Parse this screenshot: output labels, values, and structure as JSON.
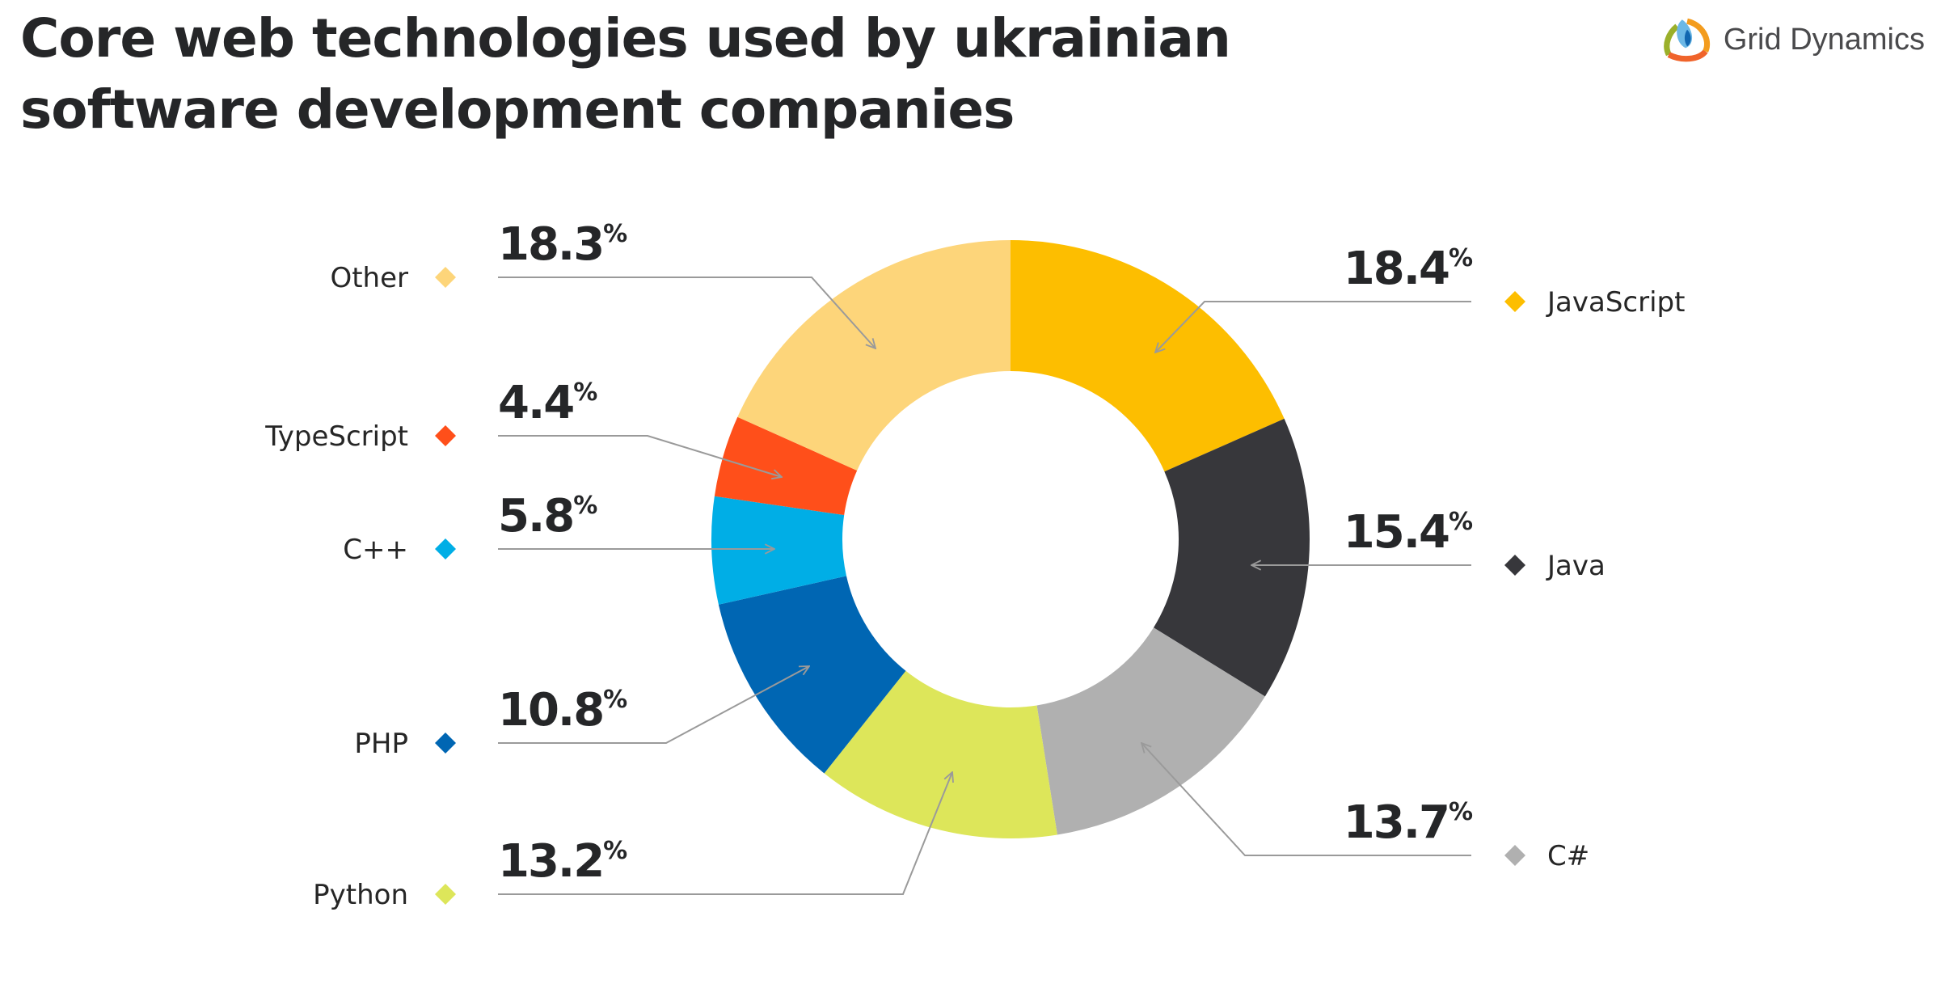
{
  "brand": {
    "name": "Grid Dynamics"
  },
  "chart_data": {
    "type": "pie",
    "variant": "donut",
    "title_lines": [
      "Core web technologies used by ukrainian",
      "software development companies"
    ],
    "unit": "%",
    "slices": [
      {
        "label": "JavaScript",
        "value": 18.4,
        "display": "18.4",
        "color": "#FDBE00",
        "side": "right"
      },
      {
        "label": "Java",
        "value": 15.4,
        "display": "15.4",
        "color": "#37373B",
        "side": "right"
      },
      {
        "label": "C#",
        "value": 13.7,
        "display": "13.7",
        "color": "#B0B0B0",
        "side": "right"
      },
      {
        "label": "Python",
        "value": 13.2,
        "display": "13.2",
        "color": "#DDE65A",
        "side": "left"
      },
      {
        "label": "PHP",
        "value": 10.8,
        "display": "10.8",
        "color": "#0066B3",
        "side": "left"
      },
      {
        "label": "C++",
        "value": 5.8,
        "display": "5.8",
        "color": "#00AEE6",
        "side": "left"
      },
      {
        "label": "TypeScript",
        "value": 4.4,
        "display": "4.4",
        "color": "#FF4F1A",
        "side": "left"
      },
      {
        "label": "Other",
        "value": 18.3,
        "display": "18.3",
        "color": "#FDD57A",
        "side": "left"
      }
    ],
    "start": "top, clockwise",
    "legend": "callouts beside the donut"
  }
}
